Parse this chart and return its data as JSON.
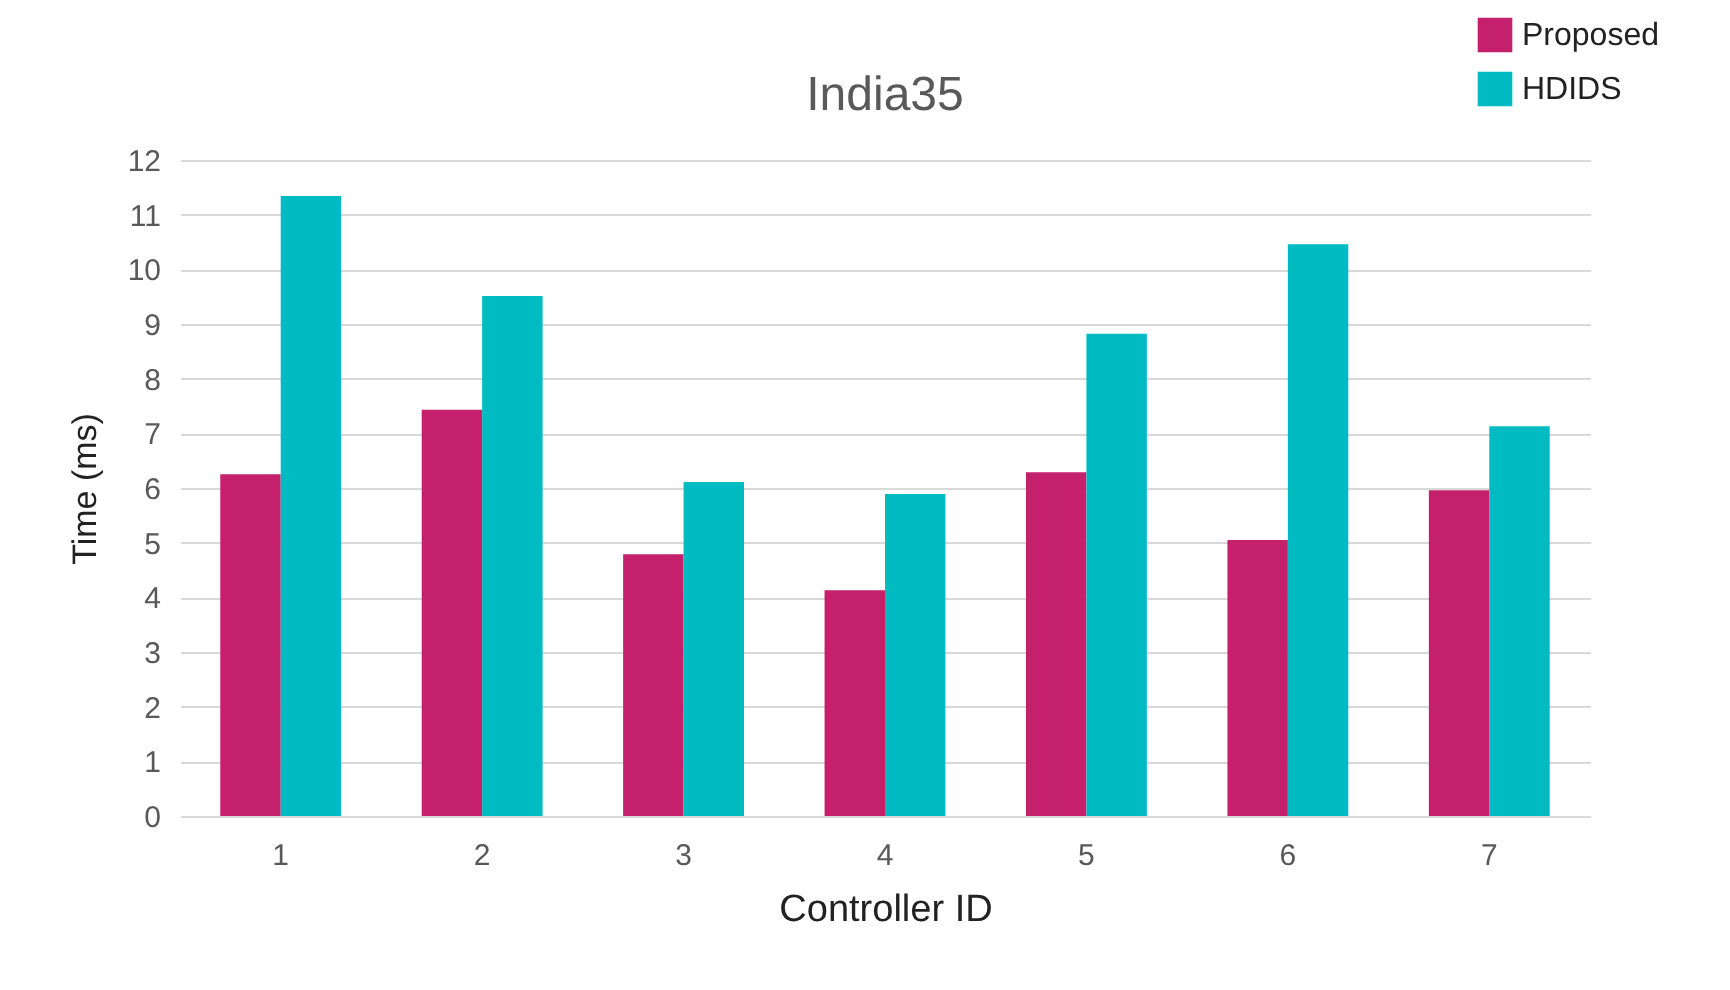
{
  "chart_data": {
    "type": "bar",
    "title": "India35",
    "xlabel": "Controller ID",
    "ylabel": "Time (ms)",
    "categories": [
      "1",
      "2",
      "3",
      "4",
      "5",
      "6",
      "7"
    ],
    "series": [
      {
        "name": "Proposed",
        "color": "#c4206b",
        "values": [
          6.25,
          7.43,
          4.79,
          4.13,
          6.29,
          5.05,
          5.96
        ]
      },
      {
        "name": "HDIDS",
        "color": "#00bcc2",
        "values": [
          11.34,
          9.51,
          6.11,
          5.89,
          8.82,
          10.46,
          7.13
        ]
      }
    ],
    "ylim": [
      0,
      12
    ],
    "yticks": [
      0,
      1,
      2,
      3,
      4,
      5,
      6,
      7,
      8,
      9,
      10,
      11,
      12
    ],
    "grid": "y",
    "legend": "top right"
  }
}
